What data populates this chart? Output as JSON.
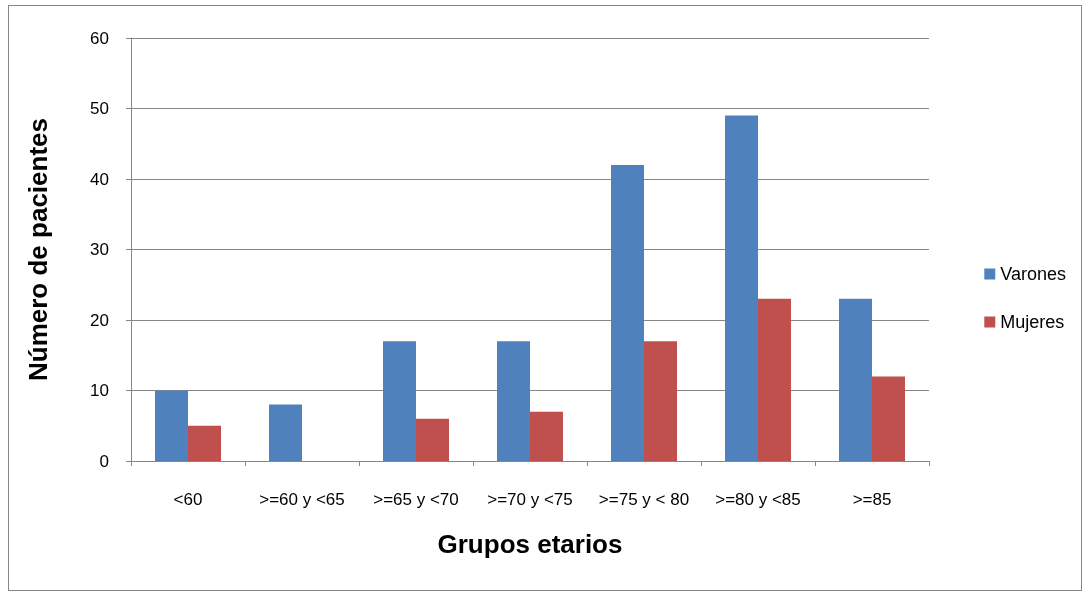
{
  "chart_data": {
    "type": "bar",
    "xlabel": "Grupos etarios",
    "ylabel": "Número de pacientes",
    "categories": [
      "<60",
      ">=60 y <65",
      ">=65 y <70",
      ">=70 y <75",
      ">=75 y < 80",
      ">=80 y <85",
      ">=85"
    ],
    "series": [
      {
        "name": "Varones",
        "color": "#4f81bd",
        "values": [
          10,
          8,
          17,
          17,
          42,
          49,
          23
        ]
      },
      {
        "name": "Mujeres",
        "color": "#c0504d",
        "values": [
          5,
          0,
          6,
          7,
          17,
          23,
          12
        ]
      }
    ],
    "ylim": [
      0,
      60
    ],
    "yticks": [
      0,
      10,
      20,
      30,
      40,
      50,
      60
    ],
    "grid": "y",
    "legend": "right"
  }
}
